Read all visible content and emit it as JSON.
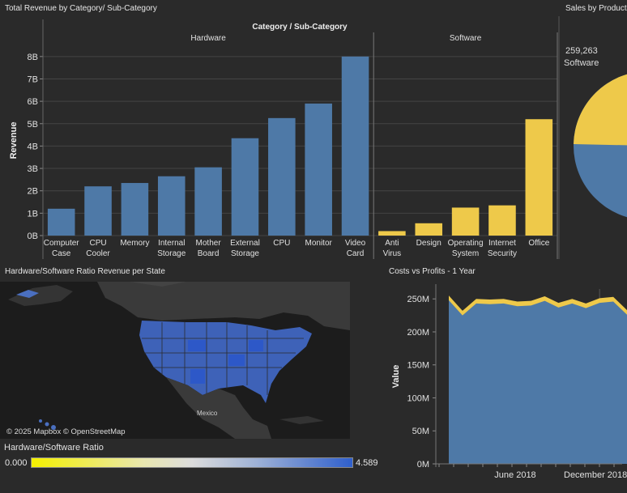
{
  "titles": {
    "bar": "Total Revenue by Category/ Sub-Category",
    "pie": "Sales by Product",
    "map": "Hardware/Software Ratio Revenue per State",
    "area": "Costs vs Profits - 1 Year"
  },
  "pie": {
    "value_label": "259,263",
    "category_label": "Software",
    "colors": {
      "software": "#eec94a",
      "hardware": "#4e79a7"
    }
  },
  "map": {
    "attribution": "© 2025 Mapbox © OpenStreetMap",
    "country_label": "Mexico",
    "legend": {
      "title": "Hardware/Software Ratio",
      "min": "0.000",
      "max": "4.589"
    }
  },
  "chart_data": [
    {
      "type": "bar",
      "title": "Category / Sub-Category",
      "ylabel": "Revenue",
      "ylim": [
        0,
        8.5
      ],
      "y_ticks": [
        "0B",
        "1B",
        "2B",
        "3B",
        "4B",
        "5B",
        "6B",
        "7B",
        "8B"
      ],
      "grid": true,
      "groups": [
        {
          "name": "Hardware",
          "color": "#4e79a7",
          "categories": [
            "Computer Case",
            "CPU Cooler",
            "Memory",
            "Internal Storage",
            "Mother Board",
            "External Storage",
            "CPU",
            "Monitor",
            "Video Card"
          ],
          "values": [
            1.2,
            2.2,
            2.35,
            2.65,
            3.05,
            4.35,
            5.25,
            5.9,
            8.0
          ]
        },
        {
          "name": "Software",
          "color": "#eec94a",
          "categories": [
            "Anti Virus",
            "Design",
            "Operating System",
            "Internet Security",
            "Office"
          ],
          "values": [
            0.2,
            0.55,
            1.25,
            1.35,
            5.2
          ]
        }
      ]
    },
    {
      "type": "area",
      "title": "Costs vs Profits - 1 Year",
      "ylabel": "Value",
      "ylim": [
        0,
        265
      ],
      "y_ticks": [
        "0M",
        "50M",
        "100M",
        "150M",
        "200M",
        "250M"
      ],
      "x_ticks": [
        "June 2018",
        "December 2018"
      ],
      "series": [
        {
          "values": [
            255,
            232,
            250,
            249,
            250,
            246,
            247,
            254,
            244,
            250,
            243,
            251,
            253,
            233
          ]
        },
        {
          "values": [
            248,
            225,
            243,
            242,
            243,
            239,
            240,
            247,
            237,
            243,
            236,
            244,
            246,
            226
          ]
        }
      ],
      "colors": [
        "#eec94a",
        "#4e79a7"
      ]
    }
  ]
}
